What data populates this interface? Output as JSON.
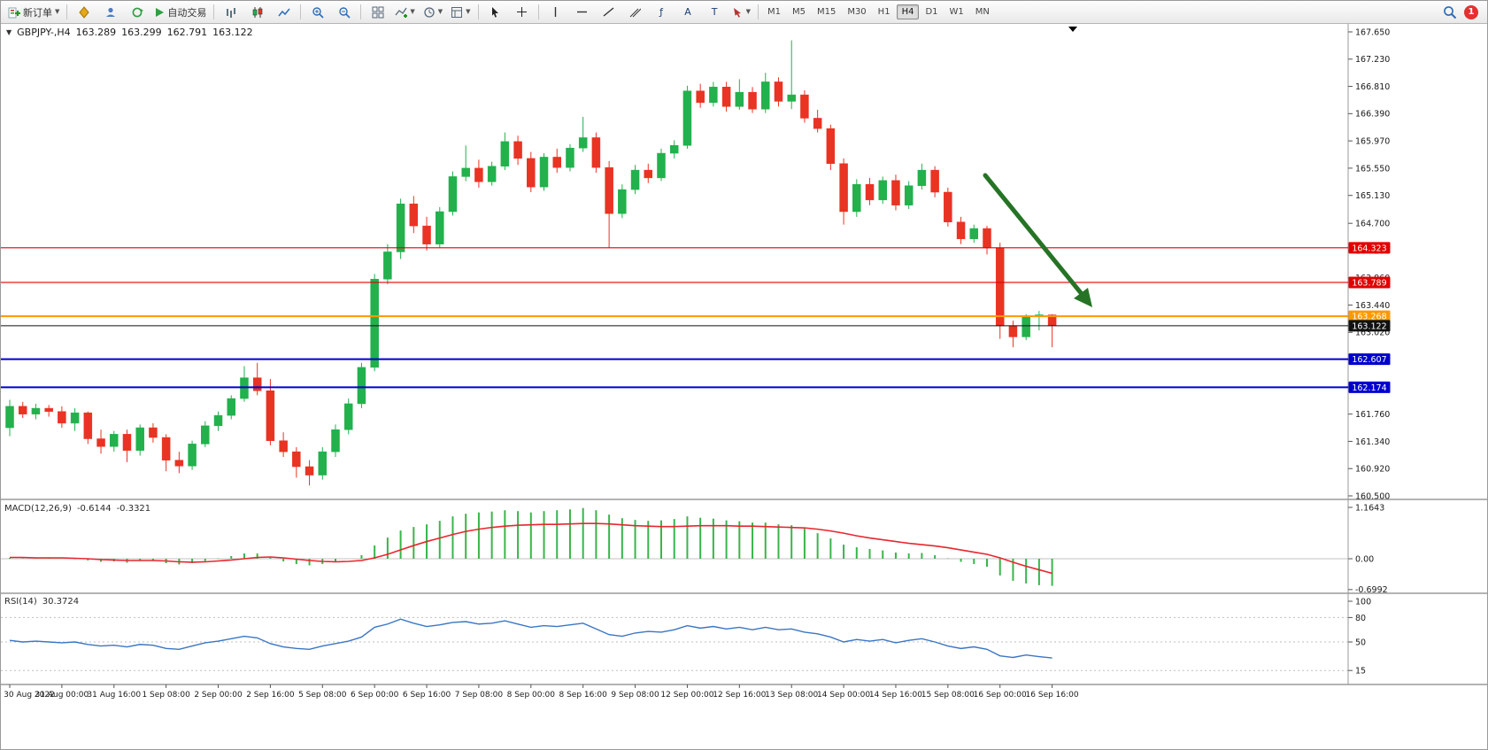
{
  "toolbar": {
    "new_order_label": "新订单",
    "autotrade_label": "自动交易",
    "fibo_glyph": "ƒ",
    "text_tool_glyph": "A",
    "label_tool_glyph": "T",
    "timeframes": [
      "M1",
      "M5",
      "M15",
      "M30",
      "H1",
      "H4",
      "D1",
      "W1",
      "MN"
    ],
    "active_timeframe": "H4",
    "notification_count": "1"
  },
  "symbol_header": {
    "symbol": "GBPJPY-,H4",
    "open": "163.289",
    "high": "163.299",
    "low": "162.791",
    "close": "163.122"
  },
  "time_axis": [
    "30 Aug 2022",
    "31 Aug 00:00",
    "31 Aug 16:00",
    "1 Sep 08:00",
    "2 Sep 00:00",
    "2 Sep 16:00",
    "5 Sep 08:00",
    "6 Sep 00:00",
    "6 Sep 16:00",
    "7 Sep 08:00",
    "8 Sep 00:00",
    "8 Sep 16:00",
    "9 Sep 08:00",
    "12 Sep 00:00",
    "12 Sep 16:00",
    "13 Sep 08:00",
    "14 Sep 00:00",
    "14 Sep 16:00",
    "15 Sep 08:00",
    "16 Sep 00:00",
    "16 Sep 16:00"
  ],
  "chart_data": [
    {
      "type": "candlestick",
      "title": "GBPJPY-,H4",
      "timeframe": "H4",
      "ylim": [
        160.5,
        167.65
      ],
      "up_color": "#22b14c",
      "down_color": "#e93323",
      "price_ticks": [
        "167.650",
        "167.230",
        "166.810",
        "166.390",
        "165.970",
        "165.550",
        "165.130",
        "164.700",
        "164.280",
        "163.860",
        "163.440",
        "163.020",
        "162.600",
        "162.180",
        "161.760",
        "161.340",
        "160.920",
        "160.500"
      ],
      "hlines": [
        {
          "price": 164.323,
          "label": "164.323",
          "color": "#e00000",
          "width": 1.2
        },
        {
          "price": 163.789,
          "label": "163.789",
          "color": "#e00000",
          "width": 1.2
        },
        {
          "price": 163.268,
          "label": "163.268",
          "color": "#ff9800",
          "width": 2
        },
        {
          "price": 163.122,
          "label": "163.122",
          "color": "#111111",
          "width": 1
        },
        {
          "price": 162.607,
          "label": "162.607",
          "color": "#0000cd",
          "width": 2
        },
        {
          "price": 162.174,
          "label": "162.174",
          "color": "#0000cd",
          "width": 2
        }
      ],
      "arrow_annotation": {
        "color": "#267326"
      },
      "candles": [
        [
          161.55,
          161.98,
          161.42,
          161.88
        ],
        [
          161.88,
          161.95,
          161.7,
          161.76
        ],
        [
          161.76,
          161.92,
          161.68,
          161.85
        ],
        [
          161.85,
          161.9,
          161.72,
          161.8
        ],
        [
          161.8,
          161.88,
          161.55,
          161.62
        ],
        [
          161.62,
          161.85,
          161.5,
          161.78
        ],
        [
          161.78,
          161.8,
          161.3,
          161.38
        ],
        [
          161.38,
          161.52,
          161.15,
          161.26
        ],
        [
          161.26,
          161.5,
          161.18,
          161.45
        ],
        [
          161.45,
          161.52,
          161.02,
          161.2
        ],
        [
          161.2,
          161.6,
          161.12,
          161.55
        ],
        [
          161.55,
          161.62,
          161.32,
          161.4
        ],
        [
          161.4,
          161.45,
          160.88,
          161.05
        ],
        [
          161.05,
          161.18,
          160.85,
          160.96
        ],
        [
          160.96,
          161.35,
          160.9,
          161.3
        ],
        [
          161.3,
          161.65,
          161.25,
          161.58
        ],
        [
          161.58,
          161.8,
          161.5,
          161.74
        ],
        [
          161.74,
          162.05,
          161.68,
          162.0
        ],
        [
          162.0,
          162.5,
          161.95,
          162.32
        ],
        [
          162.32,
          162.55,
          162.05,
          162.12
        ],
        [
          162.12,
          162.3,
          161.28,
          161.35
        ],
        [
          161.35,
          161.48,
          161.1,
          161.18
        ],
        [
          161.18,
          161.25,
          160.78,
          160.95
        ],
        [
          160.95,
          161.05,
          160.66,
          160.82
        ],
        [
          160.82,
          161.25,
          160.75,
          161.18
        ],
        [
          161.18,
          161.6,
          161.1,
          161.52
        ],
        [
          161.52,
          162.0,
          161.45,
          161.92
        ],
        [
          161.92,
          162.55,
          161.85,
          162.48
        ],
        [
          162.48,
          163.92,
          162.42,
          163.84
        ],
        [
          163.84,
          164.38,
          163.76,
          164.26
        ],
        [
          164.26,
          165.08,
          164.15,
          165.0
        ],
        [
          165.0,
          165.12,
          164.55,
          164.66
        ],
        [
          164.66,
          164.8,
          164.28,
          164.38
        ],
        [
          164.38,
          164.95,
          164.32,
          164.88
        ],
        [
          164.88,
          165.5,
          164.82,
          165.42
        ],
        [
          165.42,
          165.9,
          165.35,
          165.55
        ],
        [
          165.55,
          165.68,
          165.25,
          165.34
        ],
        [
          165.34,
          165.65,
          165.28,
          165.58
        ],
        [
          165.58,
          166.1,
          165.52,
          165.96
        ],
        [
          165.96,
          166.05,
          165.6,
          165.7
        ],
        [
          165.7,
          165.8,
          165.18,
          165.26
        ],
        [
          165.26,
          165.78,
          165.2,
          165.72
        ],
        [
          165.72,
          165.85,
          165.48,
          165.56
        ],
        [
          165.56,
          165.92,
          165.5,
          165.86
        ],
        [
          165.86,
          166.34,
          165.8,
          166.02
        ],
        [
          166.02,
          166.1,
          165.48,
          165.56
        ],
        [
          165.56,
          165.66,
          164.32,
          164.85
        ],
        [
          164.85,
          165.3,
          164.78,
          165.22
        ],
        [
          165.22,
          165.6,
          165.15,
          165.52
        ],
        [
          165.52,
          165.62,
          165.32,
          165.4
        ],
        [
          165.4,
          165.85,
          165.35,
          165.78
        ],
        [
          165.78,
          165.98,
          165.7,
          165.9
        ],
        [
          165.9,
          166.82,
          165.85,
          166.74
        ],
        [
          166.74,
          166.85,
          166.48,
          166.56
        ],
        [
          166.56,
          166.88,
          166.5,
          166.8
        ],
        [
          166.8,
          166.88,
          166.42,
          166.5
        ],
        [
          166.5,
          166.92,
          166.45,
          166.72
        ],
        [
          166.72,
          166.8,
          166.4,
          166.46
        ],
        [
          166.46,
          167.02,
          166.4,
          166.88
        ],
        [
          166.88,
          166.95,
          166.5,
          166.58
        ],
        [
          166.58,
          167.52,
          166.46,
          166.68
        ],
        [
          166.68,
          166.75,
          166.25,
          166.32
        ],
        [
          166.32,
          166.45,
          166.1,
          166.16
        ],
        [
          166.16,
          166.22,
          165.52,
          165.62
        ],
        [
          165.62,
          165.7,
          164.68,
          164.88
        ],
        [
          164.88,
          165.38,
          164.8,
          165.3
        ],
        [
          165.3,
          165.4,
          164.98,
          165.06
        ],
        [
          165.06,
          165.42,
          165.0,
          165.36
        ],
        [
          165.36,
          165.45,
          164.9,
          164.98
        ],
        [
          164.98,
          165.35,
          164.92,
          165.28
        ],
        [
          165.28,
          165.62,
          165.22,
          165.52
        ],
        [
          165.52,
          165.58,
          165.1,
          165.18
        ],
        [
          165.18,
          165.25,
          164.65,
          164.72
        ],
        [
          164.72,
          164.8,
          164.38,
          164.46
        ],
        [
          164.46,
          164.68,
          164.4,
          164.62
        ],
        [
          164.62,
          164.66,
          164.22,
          164.32
        ],
        [
          164.32,
          164.4,
          162.92,
          163.12
        ],
        [
          163.12,
          163.2,
          162.79,
          162.95
        ],
        [
          162.95,
          163.3,
          162.9,
          163.27
        ],
        [
          163.27,
          163.35,
          163.05,
          163.29
        ],
        [
          163.289,
          163.299,
          162.791,
          163.122
        ]
      ]
    },
    {
      "type": "bar",
      "name": "MACD(12,26,9)",
      "value_labels": [
        "-0.6144",
        "-0.3321"
      ],
      "axis_labels": [
        "1.1643",
        "0.00",
        "-0.6992"
      ],
      "ylim": [
        -0.6992,
        1.1643
      ],
      "histogram_color": "#39b54a",
      "signal_color": "#e8262f",
      "histogram": [
        0.02,
        0.01,
        0.02,
        0.01,
        0.0,
        -0.01,
        -0.04,
        -0.07,
        -0.06,
        -0.09,
        -0.05,
        -0.05,
        -0.1,
        -0.13,
        -0.1,
        -0.05,
        0.01,
        0.06,
        0.12,
        0.12,
        0.02,
        -0.06,
        -0.12,
        -0.15,
        -0.12,
        -0.06,
        0.0,
        0.08,
        0.3,
        0.48,
        0.64,
        0.72,
        0.78,
        0.86,
        0.96,
        1.02,
        1.05,
        1.07,
        1.1,
        1.08,
        1.05,
        1.08,
        1.1,
        1.12,
        1.15,
        1.1,
        1.0,
        0.92,
        0.88,
        0.86,
        0.87,
        0.9,
        0.96,
        0.93,
        0.91,
        0.87,
        0.85,
        0.82,
        0.82,
        0.78,
        0.76,
        0.68,
        0.58,
        0.46,
        0.32,
        0.26,
        0.22,
        0.19,
        0.14,
        0.12,
        0.13,
        0.08,
        0.01,
        -0.07,
        -0.12,
        -0.18,
        -0.38,
        -0.5,
        -0.56,
        -0.6,
        -0.6144
      ],
      "signal": [
        0.03,
        0.03,
        0.02,
        0.02,
        0.02,
        0.01,
        0.0,
        -0.02,
        -0.03,
        -0.04,
        -0.04,
        -0.04,
        -0.05,
        -0.07,
        -0.08,
        -0.07,
        -0.05,
        -0.03,
        0.0,
        0.03,
        0.04,
        0.02,
        -0.01,
        -0.04,
        -0.06,
        -0.07,
        -0.06,
        -0.04,
        0.02,
        0.1,
        0.2,
        0.3,
        0.39,
        0.47,
        0.55,
        0.62,
        0.67,
        0.71,
        0.74,
        0.76,
        0.77,
        0.78,
        0.78,
        0.79,
        0.8,
        0.8,
        0.79,
        0.77,
        0.75,
        0.74,
        0.73,
        0.73,
        0.74,
        0.75,
        0.75,
        0.75,
        0.74,
        0.74,
        0.73,
        0.72,
        0.71,
        0.7,
        0.67,
        0.63,
        0.58,
        0.52,
        0.47,
        0.43,
        0.39,
        0.35,
        0.32,
        0.29,
        0.25,
        0.2,
        0.15,
        0.1,
        0.02,
        -0.08,
        -0.17,
        -0.25,
        -0.3321
      ]
    },
    {
      "type": "line",
      "name": "RSI(14)",
      "value_label": "30.3724",
      "axis_labels": [
        "100",
        "80",
        "50",
        "15"
      ],
      "levels": [
        80,
        50,
        15
      ],
      "ylim": [
        0,
        100
      ],
      "color": "#3a76c4",
      "values": [
        52,
        50,
        51,
        50,
        49,
        50,
        47,
        45,
        46,
        44,
        47,
        46,
        42,
        41,
        45,
        49,
        51,
        54,
        57,
        55,
        48,
        44,
        42,
        41,
        45,
        48,
        51,
        56,
        68,
        72,
        78,
        73,
        69,
        71,
        74,
        75,
        72,
        73,
        76,
        72,
        68,
        70,
        69,
        71,
        73,
        66,
        59,
        57,
        61,
        63,
        62,
        65,
        70,
        67,
        69,
        66,
        68,
        65,
        68,
        65,
        66,
        62,
        60,
        56,
        50,
        53,
        51,
        53,
        49,
        52,
        54,
        50,
        45,
        42,
        44,
        41,
        33,
        31,
        34,
        32,
        30.37
      ]
    }
  ]
}
